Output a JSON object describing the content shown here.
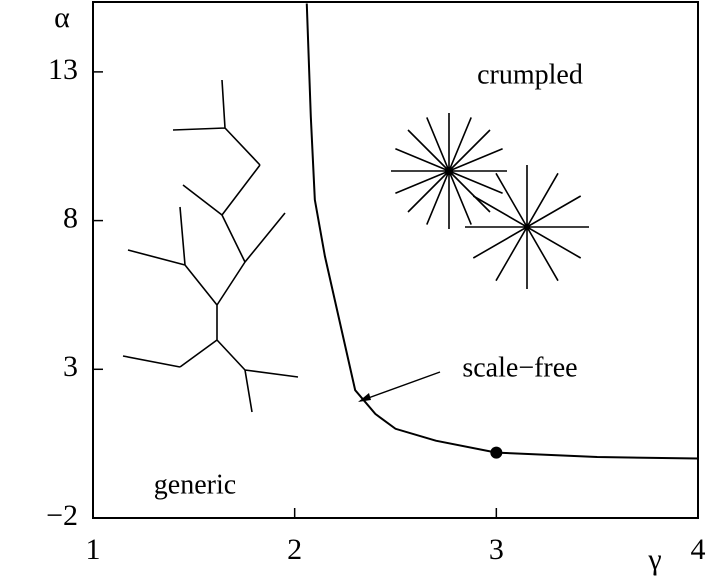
{
  "chart_data": {
    "type": "line",
    "x_label": "γ",
    "y_label": "α",
    "x": [
      2.06,
      2.08,
      2.1,
      2.15,
      2.2,
      2.3,
      2.4,
      2.5,
      2.7,
      3,
      3.5,
      4
    ],
    "series": [
      {
        "name": "scale−free",
        "color": "#000000",
        "values": [
          15.3,
          11.5,
          8.7,
          6.8,
          5.3,
          2.3,
          1.5,
          1.0,
          0.6,
          0.2,
          0.05,
          0
        ]
      }
    ],
    "marker": {
      "x": 3,
      "y": 0.2
    },
    "annotations": [
      "crumpled",
      "scale−free",
      "generic"
    ],
    "xlim": [
      1,
      4
    ],
    "xticks": [
      1,
      2,
      3,
      4
    ],
    "ylim": [
      -2,
      15.35
    ],
    "yticks": [
      {
        "value": -2,
        "label": "−2"
      },
      3,
      8,
      13
    ]
  }
}
